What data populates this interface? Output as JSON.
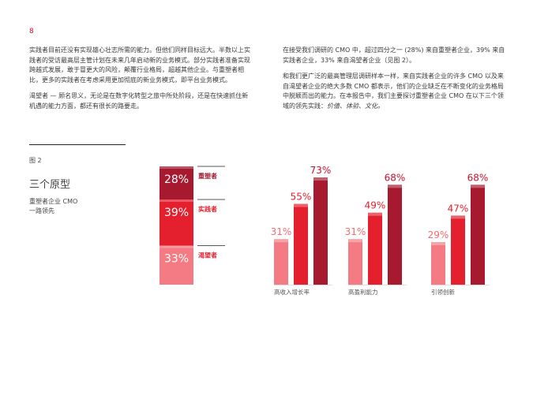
{
  "page": {
    "number": "8"
  },
  "text": {
    "left_paragraphs": [
      "实践者目前还没有实现雄心壮志所需的能力。但他们同样目标远大。半数以上实践者的受访最高层主管计划在未来几年启动新的业务模式。部分实践者准备实现跨越式发展，敢于冒更大的风险，颠覆行业格局，超越其他企业。与重塑者相比，更多的实践者在考虑采用更加彻底的新业务模式，即平台业务模式。",
      "渴望者 — 顾名思义，无论是在数字化转型之旅中所处阶段，还是在快速抓住新机遇的能力方面，都还有很长的路要走。"
    ],
    "right_paragraphs": [
      "在接受我们调研的 CMO 中，超过四分之一 (28%) 来自重塑者企业，39% 来自实践者企业，33% 来自渴望者企业（见图 2）。",
      "和我们更广泛的最高管理层调研样本一样，来自实践者企业的许多 CMO 以及来自渴望者企业的绝大多数 CMO 都表示，他们的企业缺乏在不断变化的业务格局中脱颖而出的能力。在本报告中，我们主要探讨重塑者企业 CMO 在以下三个领域的领先实践："
    ],
    "right_emphasis": "价值、体验、文化。"
  },
  "figure": {
    "label": "图 2",
    "title": "三个原型",
    "subtitle_line1": "重塑者企业 CMO",
    "subtitle_line2": "一路领先"
  },
  "chart_data": [
    {
      "type": "bar",
      "stacked": true,
      "categories": [
        "重塑者",
        "实践者",
        "渴望者"
      ],
      "values": [
        28,
        39,
        33
      ],
      "value_labels": [
        "28%",
        "39%",
        "33%"
      ],
      "colors": [
        "#a6192e",
        "#e4202f",
        "#f47b83"
      ]
    },
    {
      "type": "bar",
      "categories": [
        "高收入增长率",
        "高盈利能力",
        "引领创新"
      ],
      "series": [
        {
          "values": [
            31,
            31,
            29
          ],
          "labels": [
            "31%",
            "31%",
            "29%"
          ],
          "color": "#f47b83"
        },
        {
          "values": [
            55,
            49,
            47
          ],
          "labels": [
            "55%",
            "49%",
            "47%"
          ],
          "color": "#e4202f"
        },
        {
          "values": [
            73,
            68,
            68
          ],
          "labels": [
            "73%",
            "68%",
            "68%"
          ],
          "color": "#a6192e"
        }
      ],
      "ylim": [
        0,
        100
      ]
    }
  ],
  "colors": {
    "accent": "#c8102e",
    "aspirant": "#f47b83",
    "practitioner": "#e4202f",
    "reinventor": "#a6192e"
  }
}
